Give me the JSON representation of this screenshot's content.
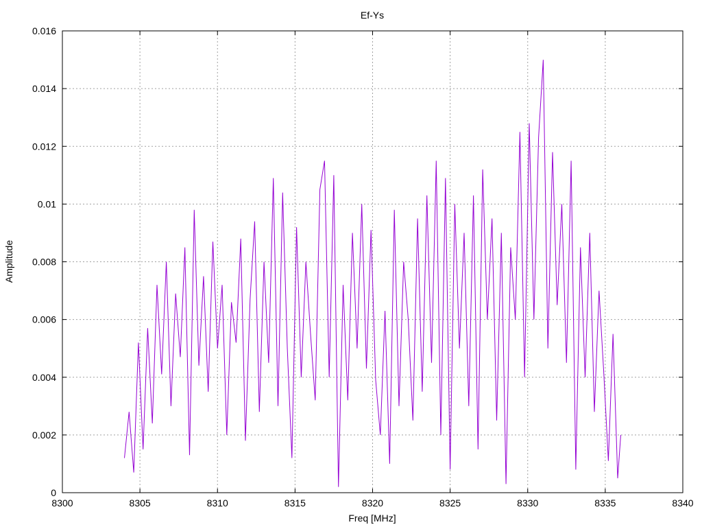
{
  "chart_data": {
    "type": "line",
    "title": "Ef-Ys",
    "xlabel": "Freq [MHz]",
    "ylabel": "Amplitude",
    "xlim": [
      8300,
      8340
    ],
    "ylim": [
      0,
      0.016
    ],
    "x_ticks": [
      "8300",
      "8305",
      "8310",
      "8315",
      "8320",
      "8325",
      "8330",
      "8335",
      "8340"
    ],
    "y_ticks": [
      "0",
      "0.002",
      "0.004",
      "0.006",
      "0.008",
      "0.01",
      "0.012",
      "0.014",
      "0.016"
    ],
    "x_tick_values": [
      8300,
      8305,
      8310,
      8315,
      8320,
      8325,
      8330,
      8335,
      8340
    ],
    "y_tick_values": [
      0,
      0.002,
      0.004,
      0.006,
      0.008,
      0.01,
      0.012,
      0.014,
      0.016
    ],
    "grid": true,
    "line_color": "#9400d3",
    "series": [
      {
        "values": [
          [
            8304.0,
            0.0012
          ],
          [
            8304.3,
            0.0028
          ],
          [
            8304.6,
            0.0007
          ],
          [
            8304.9,
            0.0052
          ],
          [
            8305.2,
            0.0015
          ],
          [
            8305.5,
            0.0057
          ],
          [
            8305.8,
            0.0024
          ],
          [
            8306.1,
            0.0072
          ],
          [
            8306.4,
            0.0041
          ],
          [
            8306.7,
            0.008
          ],
          [
            8307.0,
            0.003
          ],
          [
            8307.3,
            0.0069
          ],
          [
            8307.6,
            0.0047
          ],
          [
            8307.9,
            0.0085
          ],
          [
            8308.2,
            0.0013
          ],
          [
            8308.5,
            0.0098
          ],
          [
            8308.8,
            0.0044
          ],
          [
            8309.1,
            0.0075
          ],
          [
            8309.4,
            0.0035
          ],
          [
            8309.7,
            0.0087
          ],
          [
            8310.0,
            0.005
          ],
          [
            8310.3,
            0.0072
          ],
          [
            8310.6,
            0.002
          ],
          [
            8310.9,
            0.0066
          ],
          [
            8311.2,
            0.0052
          ],
          [
            8311.5,
            0.0088
          ],
          [
            8311.8,
            0.0018
          ],
          [
            8312.1,
            0.0067
          ],
          [
            8312.4,
            0.0094
          ],
          [
            8312.7,
            0.0028
          ],
          [
            8313.0,
            0.008
          ],
          [
            8313.3,
            0.0045
          ],
          [
            8313.6,
            0.0109
          ],
          [
            8313.9,
            0.003
          ],
          [
            8314.2,
            0.0104
          ],
          [
            8314.5,
            0.005
          ],
          [
            8314.8,
            0.0012
          ],
          [
            8315.1,
            0.0092
          ],
          [
            8315.4,
            0.004
          ],
          [
            8315.7,
            0.008
          ],
          [
            8316.0,
            0.0055
          ],
          [
            8316.3,
            0.0032
          ],
          [
            8316.6,
            0.0105
          ],
          [
            8316.9,
            0.0115
          ],
          [
            8317.2,
            0.004
          ],
          [
            8317.5,
            0.011
          ],
          [
            8317.8,
            0.0002
          ],
          [
            8318.1,
            0.0072
          ],
          [
            8318.4,
            0.0032
          ],
          [
            8318.7,
            0.009
          ],
          [
            8319.0,
            0.005
          ],
          [
            8319.3,
            0.01
          ],
          [
            8319.6,
            0.0043
          ],
          [
            8319.9,
            0.0091
          ],
          [
            8320.2,
            0.0039
          ],
          [
            8320.5,
            0.002
          ],
          [
            8320.8,
            0.0063
          ],
          [
            8321.1,
            0.001
          ],
          [
            8321.4,
            0.0098
          ],
          [
            8321.7,
            0.003
          ],
          [
            8322.0,
            0.008
          ],
          [
            8322.3,
            0.006
          ],
          [
            8322.6,
            0.0025
          ],
          [
            8322.9,
            0.0095
          ],
          [
            8323.2,
            0.0035
          ],
          [
            8323.5,
            0.0103
          ],
          [
            8323.8,
            0.0045
          ],
          [
            8324.1,
            0.0115
          ],
          [
            8324.4,
            0.002
          ],
          [
            8324.7,
            0.0109
          ],
          [
            8325.0,
            0.0008
          ],
          [
            8325.3,
            0.01
          ],
          [
            8325.6,
            0.005
          ],
          [
            8325.9,
            0.009
          ],
          [
            8326.2,
            0.003
          ],
          [
            8326.5,
            0.0103
          ],
          [
            8326.8,
            0.0015
          ],
          [
            8327.1,
            0.0112
          ],
          [
            8327.4,
            0.006
          ],
          [
            8327.7,
            0.0095
          ],
          [
            8328.0,
            0.0025
          ],
          [
            8328.3,
            0.009
          ],
          [
            8328.6,
            0.0003
          ],
          [
            8328.9,
            0.0085
          ],
          [
            8329.2,
            0.006
          ],
          [
            8329.5,
            0.0125
          ],
          [
            8329.8,
            0.004
          ],
          [
            8330.1,
            0.0128
          ],
          [
            8330.4,
            0.006
          ],
          [
            8330.7,
            0.0123
          ],
          [
            8331.0,
            0.015
          ],
          [
            8331.3,
            0.005
          ],
          [
            8331.6,
            0.0118
          ],
          [
            8331.9,
            0.0065
          ],
          [
            8332.2,
            0.01
          ],
          [
            8332.5,
            0.0045
          ],
          [
            8332.8,
            0.0115
          ],
          [
            8333.1,
            0.0008
          ],
          [
            8333.4,
            0.0085
          ],
          [
            8333.7,
            0.004
          ],
          [
            8334.0,
            0.009
          ],
          [
            8334.3,
            0.0028
          ],
          [
            8334.6,
            0.007
          ],
          [
            8334.9,
            0.0042
          ],
          [
            8335.2,
            0.0011
          ],
          [
            8335.5,
            0.0055
          ],
          [
            8335.8,
            0.0005
          ],
          [
            8336.0,
            0.002
          ]
        ]
      }
    ]
  }
}
